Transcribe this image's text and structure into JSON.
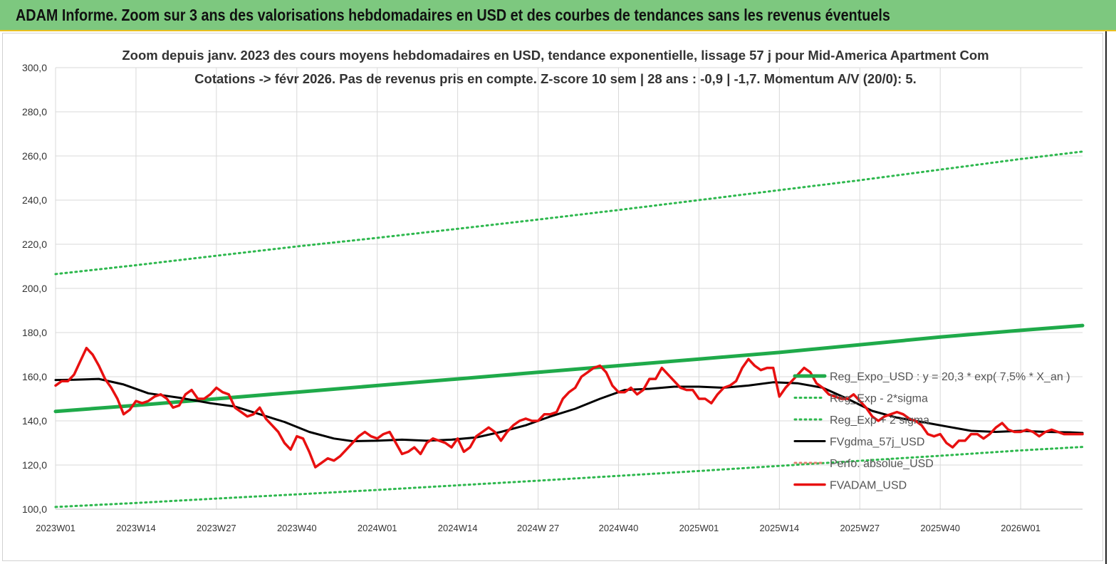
{
  "banner": {
    "title": "ADAM Informe. Zoom sur 3 ans des valorisations hebdomadaires en USD et des courbes de tendances sans les revenus éventuels"
  },
  "colors": {
    "banner_bg": "#7dc87f",
    "trend": "#1faa4a",
    "sigma": "#2eb84e",
    "moving_average": "#000000",
    "price": "#e81010"
  },
  "chart_data": {
    "type": "line",
    "title_line1": "Zoom depuis janv. 2023 des cours moyens hebdomadaires en USD, tendance exponentielle, lissage 57 j pour Mid-America Apartment Com",
    "title_line2": "Cotations -> févr 2026.  Pas de revenus pris en compte. Z-score 10 sem  | 28 ans : -0,9 | -1,7. Momentum A/V (20/0): 5.",
    "xlabel": "",
    "ylabel": "",
    "ylim": [
      100,
      300
    ],
    "yticks": [
      100,
      120,
      140,
      160,
      180,
      200,
      220,
      240,
      260,
      280,
      300
    ],
    "ytick_labels": [
      "100,0",
      "120,0",
      "140,0",
      "160,0",
      "180,0",
      "200,0",
      "220,0",
      "240,0",
      "260,0",
      "280,0",
      "300,0"
    ],
    "x_range_weeks": [
      0,
      166
    ],
    "xticks": [
      {
        "week": 0,
        "label": "2023W01"
      },
      {
        "week": 13,
        "label": "2023W14"
      },
      {
        "week": 26,
        "label": "2023W27"
      },
      {
        "week": 39,
        "label": "2023W40"
      },
      {
        "week": 52,
        "label": "2024W01"
      },
      {
        "week": 65,
        "label": "2024W14"
      },
      {
        "week": 78,
        "label": "2024W 27"
      },
      {
        "week": 91,
        "label": "2024W40"
      },
      {
        "week": 104,
        "label": "2025W01"
      },
      {
        "week": 117,
        "label": "2025W14"
      },
      {
        "week": 130,
        "label": "2025W27"
      },
      {
        "week": 143,
        "label": "2025W40"
      },
      {
        "week": 156,
        "label": "2026W01"
      }
    ],
    "grid": true,
    "legend_position": "right",
    "series": [
      {
        "name": "Reg_Expo_USD : y = 20,3 * exp( 7,5% *  X_an )",
        "style": "solid-thick",
        "x": [
          0,
          13,
          26,
          39,
          52,
          65,
          78,
          91,
          104,
          117,
          130,
          143,
          156,
          166
        ],
        "y": [
          144.3,
          147.0,
          150.0,
          153.0,
          156.0,
          159.0,
          162.0,
          165.0,
          168.0,
          171.0,
          174.5,
          178.0,
          181.0,
          183.2
        ]
      },
      {
        "name": "Reg_Exp - 2*sigma",
        "style": "dotted",
        "x": [
          0,
          13,
          26,
          39,
          52,
          65,
          78,
          91,
          104,
          117,
          130,
          143,
          156,
          166
        ],
        "y": [
          101.0,
          102.8,
          104.8,
          106.7,
          108.7,
          110.8,
          112.9,
          115.1,
          117.3,
          119.6,
          121.9,
          124.2,
          126.6,
          128.2
        ]
      },
      {
        "name": "Reg_Exp + 2 sigma",
        "style": "dotted",
        "x": [
          0,
          13,
          26,
          39,
          52,
          65,
          78,
          91,
          104,
          117,
          130,
          143,
          156,
          166
        ],
        "y": [
          206.5,
          210.5,
          214.8,
          219.0,
          222.9,
          227.0,
          231.2,
          235.5,
          240.0,
          244.5,
          249.0,
          253.8,
          258.6,
          262.0
        ]
      },
      {
        "name": "FVgdma_57j_USD",
        "style": "solid",
        "x": [
          0,
          3,
          7,
          11,
          15,
          20,
          25,
          29,
          33,
          37,
          41,
          45,
          48,
          52,
          56,
          60,
          64,
          68,
          72,
          76,
          80,
          84,
          88,
          92,
          96,
          100,
          104,
          108,
          112,
          116,
          120,
          124,
          128,
          132,
          136,
          140,
          144,
          148,
          152,
          156,
          160,
          164,
          166
        ],
        "y": [
          158.5,
          158.6,
          159.0,
          156.5,
          152.5,
          150.5,
          148.0,
          146.5,
          143.0,
          139.5,
          135.0,
          132.0,
          130.8,
          131.0,
          131.5,
          131.0,
          131.5,
          132.5,
          135.0,
          138.0,
          142.0,
          145.5,
          150.0,
          154.0,
          154.5,
          155.5,
          155.5,
          155.0,
          156.0,
          157.5,
          157.0,
          155.0,
          150.0,
          144.5,
          141.5,
          139.5,
          137.5,
          135.5,
          135.0,
          135.5,
          135.0,
          134.8,
          134.5
        ]
      },
      {
        "name": "Perfo. absolue_USD",
        "style": "dotted",
        "color": "#e08070",
        "x": [],
        "y": []
      },
      {
        "name": "FVADAM_USD",
        "style": "solid-thick",
        "x": [
          0,
          1,
          2,
          3,
          4,
          5,
          6,
          7,
          8,
          9,
          10,
          11,
          12,
          13,
          14,
          15,
          16,
          17,
          18,
          19,
          20,
          21,
          22,
          23,
          24,
          25,
          26,
          27,
          28,
          29,
          30,
          31,
          32,
          33,
          34,
          35,
          36,
          37,
          38,
          39,
          40,
          41,
          42,
          43,
          44,
          45,
          46,
          47,
          48,
          49,
          50,
          51,
          52,
          53,
          54,
          55,
          56,
          57,
          58,
          59,
          60,
          61,
          62,
          63,
          64,
          65,
          66,
          67,
          68,
          69,
          70,
          71,
          72,
          73,
          74,
          75,
          76,
          77,
          78,
          79,
          80,
          81,
          82,
          83,
          84,
          85,
          86,
          87,
          88,
          89,
          90,
          91,
          92,
          93,
          94,
          95,
          96,
          97,
          98,
          99,
          100,
          101,
          102,
          103,
          104,
          105,
          106,
          107,
          108,
          109,
          110,
          111,
          112,
          113,
          114,
          115,
          116,
          117,
          118,
          119,
          120,
          121,
          122,
          123,
          124,
          125,
          126,
          127,
          128,
          129,
          130,
          131,
          132,
          133,
          134,
          135,
          136,
          137,
          138,
          139,
          140,
          141,
          142,
          143,
          144,
          145,
          146,
          147,
          148,
          149,
          150,
          151,
          152,
          153,
          154,
          155,
          156,
          157,
          158,
          159,
          160,
          161,
          162,
          163,
          164,
          165,
          166
        ],
        "y": [
          156,
          158,
          158,
          161,
          167,
          173,
          170,
          165,
          159,
          155,
          150,
          143,
          145,
          149,
          148,
          149,
          151,
          152,
          150,
          146,
          147,
          152,
          154,
          150,
          150,
          152,
          155,
          153,
          152,
          146,
          144,
          142,
          143,
          146,
          141,
          138,
          135,
          130,
          127,
          133,
          132,
          126,
          119,
          121,
          123,
          122,
          124,
          127,
          130,
          133,
          135,
          133,
          132,
          134,
          135,
          130,
          125,
          126,
          128,
          125,
          130,
          132,
          131,
          130,
          128,
          132,
          126,
          128,
          133,
          135,
          137,
          135,
          131,
          135,
          138,
          140,
          141,
          140,
          140,
          143,
          143,
          144,
          150,
          153,
          155,
          160,
          162,
          164,
          165,
          162,
          156,
          153,
          153,
          155,
          152,
          154,
          159,
          159,
          164,
          161,
          158,
          155,
          154,
          154,
          150,
          150,
          148,
          152,
          155,
          156,
          158,
          164,
          168,
          165,
          163,
          164,
          164,
          151,
          155,
          158,
          161,
          164,
          162,
          157,
          155,
          152,
          151,
          150,
          150,
          152,
          149,
          146,
          142,
          140,
          142,
          143,
          144,
          143,
          141,
          140,
          138,
          134,
          133,
          134,
          130,
          128,
          131,
          131,
          134,
          134,
          132,
          134,
          137,
          139,
          136,
          135,
          135,
          136,
          135,
          133,
          135,
          136,
          135,
          134,
          134,
          134,
          134
        ]
      }
    ]
  }
}
